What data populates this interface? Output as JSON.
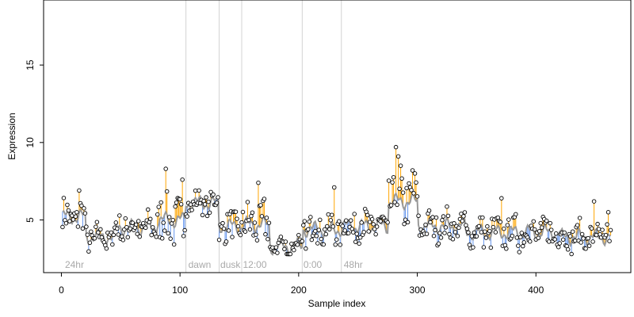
{
  "chart_data": {
    "type": "scatter",
    "title": "",
    "xlabel": "Sample index",
    "ylabel": "Expression",
    "xlim": [
      -15,
      480
    ],
    "ylim": [
      1.6,
      19.2
    ],
    "x_ticks": [
      0,
      100,
      200,
      300,
      400
    ],
    "y_ticks": [
      5,
      10,
      15
    ],
    "grid": false,
    "legend": "none",
    "colors": {
      "above_trend": "#FFA500",
      "below_trend": "#6495ED",
      "trend_line": "#999999",
      "divider": "#d3d3d3",
      "phase_label": "#a9a9a9",
      "point_fill": "#ffffff",
      "point_stroke": "#000000"
    },
    "dividers": [
      105,
      133,
      152,
      203,
      236
    ],
    "phase_labels": [
      {
        "x": 3,
        "text": "24hr"
      },
      {
        "x": 107,
        "text": "dawn"
      },
      {
        "x": 134,
        "text": "dusk"
      },
      {
        "x": 153,
        "text": "12:00"
      },
      {
        "x": 204,
        "text": "0:00"
      },
      {
        "x": 238,
        "text": "48hr"
      }
    ],
    "n_points": 463,
    "segments": [
      {
        "start": 1,
        "end": 20,
        "trend": 5.2,
        "amp": 1.0
      },
      {
        "start": 21,
        "end": 45,
        "trend": 3.9,
        "amp": 0.6
      },
      {
        "start": 46,
        "end": 80,
        "trend": 4.5,
        "amp": 0.8
      },
      {
        "start": 81,
        "end": 104,
        "trend": 5.0,
        "amp": 1.5
      },
      {
        "start": 105,
        "end": 132,
        "trend": 6.1,
        "amp": 0.6
      },
      {
        "start": 133,
        "end": 152,
        "trend": 4.6,
        "amp": 0.9
      },
      {
        "start": 153,
        "end": 175,
        "trend": 4.7,
        "amp": 1.4
      },
      {
        "start": 176,
        "end": 203,
        "trend": 3.3,
        "amp": 0.5
      },
      {
        "start": 204,
        "end": 236,
        "trend": 4.4,
        "amp": 0.8
      },
      {
        "start": 237,
        "end": 275,
        "trend": 4.6,
        "amp": 1.0
      },
      {
        "start": 276,
        "end": 300,
        "trend": 6.2,
        "amp": 1.6
      },
      {
        "start": 301,
        "end": 340,
        "trend": 4.6,
        "amp": 0.8
      },
      {
        "start": 341,
        "end": 420,
        "trend": 4.2,
        "amp": 0.9
      },
      {
        "start": 421,
        "end": 463,
        "trend": 3.9,
        "amp": 0.8
      }
    ],
    "peaks": [
      {
        "x": 15,
        "y": 6.9
      },
      {
        "x": 88,
        "y": 8.3
      },
      {
        "x": 102,
        "y": 7.6
      },
      {
        "x": 166,
        "y": 7.4
      },
      {
        "x": 282,
        "y": 9.7
      },
      {
        "x": 284,
        "y": 9.1
      },
      {
        "x": 286,
        "y": 8.5
      },
      {
        "x": 296,
        "y": 8.2
      },
      {
        "x": 298,
        "y": 8.0
      },
      {
        "x": 230,
        "y": 7.1
      },
      {
        "x": 371,
        "y": 6.4
      },
      {
        "x": 449,
        "y": 6.2
      },
      {
        "x": 461,
        "y": 5.5
      }
    ]
  }
}
